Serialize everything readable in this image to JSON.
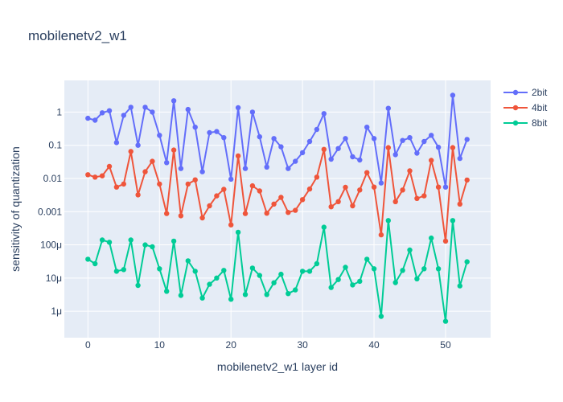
{
  "chart_data": {
    "type": "line",
    "title": "mobilenetv2_w1",
    "xlabel": "mobilenetv2_w1 layer id",
    "ylabel": "sensitivity of quantization",
    "y_scale": "log",
    "ylim": [
      1.6e-07,
      9
    ],
    "xlim": [
      -3.3,
      56.3
    ],
    "x_ticks": [
      0,
      10,
      20,
      30,
      40,
      50
    ],
    "y_ticks": [
      {
        "value": 1,
        "label": "1"
      },
      {
        "value": 0.1,
        "label": "0.1"
      },
      {
        "value": 0.01,
        "label": "0.01"
      },
      {
        "value": 0.001,
        "label": "0.001"
      },
      {
        "value": 0.0001,
        "label": "100μ"
      },
      {
        "value": 1e-05,
        "label": "10μ"
      },
      {
        "value": 1e-06,
        "label": "1μ"
      }
    ],
    "legend_position": "top-right",
    "grid": true,
    "x": [
      0,
      1,
      2,
      3,
      4,
      5,
      6,
      7,
      8,
      9,
      10,
      11,
      12,
      13,
      14,
      15,
      16,
      17,
      18,
      19,
      20,
      21,
      22,
      23,
      24,
      25,
      26,
      27,
      28,
      29,
      30,
      31,
      32,
      33,
      34,
      35,
      36,
      37,
      38,
      39,
      40,
      41,
      42,
      43,
      44,
      45,
      46,
      47,
      48,
      49,
      50,
      51,
      52,
      53
    ],
    "series": [
      {
        "name": "2bit",
        "color": "#636efa",
        "values": [
          0.65,
          0.57,
          0.95,
          1.1,
          0.12,
          0.8,
          1.4,
          0.1,
          1.4,
          1.0,
          0.2,
          0.03,
          2.2,
          0.02,
          1.2,
          0.35,
          0.016,
          0.24,
          0.26,
          0.17,
          0.0095,
          1.35,
          0.02,
          1.0,
          0.18,
          0.022,
          0.16,
          0.09,
          0.02,
          0.033,
          0.06,
          0.13,
          0.3,
          0.9,
          0.038,
          0.08,
          0.16,
          0.045,
          0.036,
          0.35,
          0.16,
          0.0073,
          1.3,
          0.052,
          0.14,
          0.17,
          0.058,
          0.13,
          0.2,
          0.087,
          0.0055,
          3.2,
          0.04,
          0.15
        ]
      },
      {
        "name": "4bit",
        "color": "#ef553b",
        "values": [
          0.013,
          0.011,
          0.012,
          0.023,
          0.0055,
          0.0068,
          0.065,
          0.0032,
          0.016,
          0.033,
          0.0068,
          0.00088,
          0.072,
          0.00075,
          0.0068,
          0.0091,
          0.00065,
          0.0015,
          0.003,
          0.0047,
          0.0004,
          0.048,
          0.00088,
          0.006,
          0.0042,
          0.0009,
          0.0017,
          0.0027,
          0.00095,
          0.0011,
          0.0023,
          0.0048,
          0.011,
          0.075,
          0.0014,
          0.002,
          0.0054,
          0.0015,
          0.0045,
          0.015,
          0.0055,
          0.0002,
          0.085,
          0.002,
          0.0045,
          0.017,
          0.0025,
          0.003,
          0.035,
          0.0055,
          0.00013,
          0.085,
          0.0017,
          0.009
        ]
      },
      {
        "name": "8bit",
        "color": "#00cc96",
        "values": [
          3.7e-05,
          2.7e-05,
          0.00014,
          0.00012,
          1.6e-05,
          1.8e-05,
          0.00014,
          6e-06,
          0.0001,
          8.8e-05,
          1.9e-05,
          4e-06,
          0.00013,
          3e-06,
          3.3e-05,
          1.6e-05,
          2.5e-06,
          6.5e-06,
          1e-05,
          1.7e-05,
          2.3e-06,
          0.00024,
          3.2e-06,
          2e-05,
          1.2e-05,
          3.2e-06,
          7.2e-06,
          1.3e-05,
          3.4e-06,
          4.4e-06,
          1.6e-05,
          1.6e-05,
          2.7e-05,
          0.00034,
          5.2e-06,
          9e-06,
          2.1e-05,
          6.2e-06,
          8e-06,
          3.7e-05,
          1.9e-05,
          7e-07,
          0.00054,
          7.3e-06,
          1.7e-05,
          7e-05,
          9.5e-06,
          1.9e-05,
          0.00016,
          1.9e-05,
          5e-07,
          0.00054,
          5.8e-06,
          3.1e-05
        ]
      }
    ]
  }
}
